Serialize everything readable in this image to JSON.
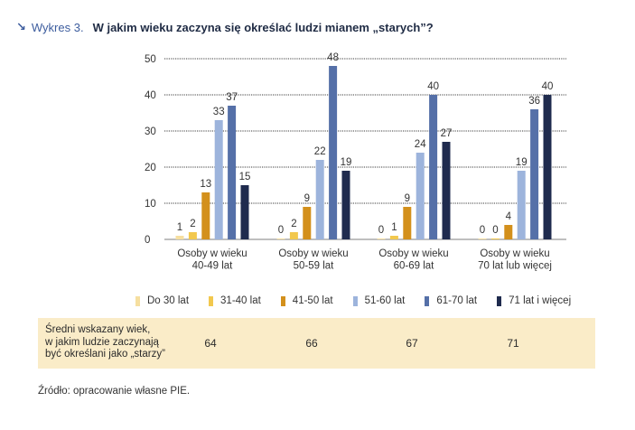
{
  "header": {
    "arrow_icon": "arrow-down-right-icon",
    "label": "Wykres 3.",
    "title": "W jakim wieku zaczyna się określać ludzi mianem „starych”?"
  },
  "chart_data": {
    "type": "bar",
    "categories": [
      [
        "Osoby w wieku",
        "40-49 lat"
      ],
      [
        "Osoby w wieku",
        "50-59 lat"
      ],
      [
        "Osoby w wieku",
        "60-69 lat"
      ],
      [
        "Osoby w wieku",
        "70 lat lub więcej"
      ]
    ],
    "series": [
      {
        "name": "Do 30 lat",
        "color": "#f6dfa0",
        "values": [
          1,
          0,
          0,
          0
        ]
      },
      {
        "name": "31-40 lat",
        "color": "#f2c84e",
        "values": [
          2,
          2,
          1,
          0
        ]
      },
      {
        "name": "41-50 lat",
        "color": "#d3901c",
        "values": [
          13,
          9,
          9,
          4
        ]
      },
      {
        "name": "51-60 lat",
        "color": "#9db4dc",
        "values": [
          33,
          22,
          24,
          19
        ]
      },
      {
        "name": "61-70 lat",
        "color": "#5570a8",
        "values": [
          37,
          48,
          40,
          36
        ]
      },
      {
        "name": "71 lat i więcej",
        "color": "#1f2b4e",
        "values": [
          15,
          19,
          27,
          40
        ]
      }
    ],
    "ylim": [
      0,
      50
    ],
    "yticks": [
      0,
      10,
      20,
      30,
      40,
      50
    ],
    "grid": true,
    "legend_position": "bottom"
  },
  "summary": {
    "label_lines": [
      "Średni wskazany wiek,",
      "w jakim ludzie zaczynają",
      "być określani jako „starzy”"
    ],
    "values": [
      "64",
      "66",
      "67",
      "71"
    ],
    "background": "#faecc8"
  },
  "source": "Źródło: opracowanie własne PIE."
}
